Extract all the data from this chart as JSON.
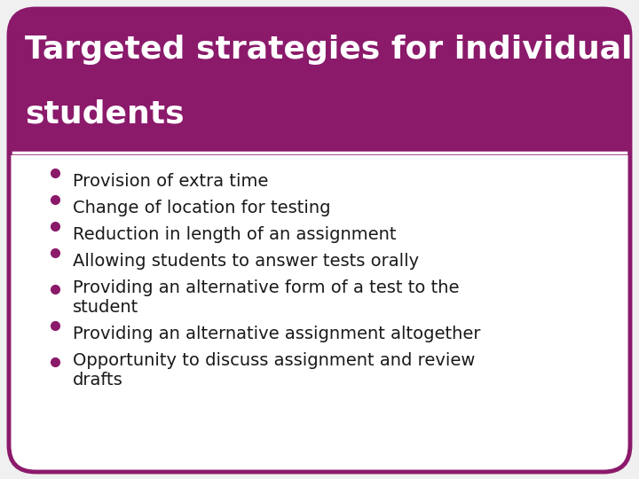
{
  "title_line1": "Targeted strategies for individual",
  "title_line2": "students",
  "title_bg_color": "#8B1A6B",
  "title_text_color": "#FFFFFF",
  "border_color": "#8B1A6B",
  "background_color": "#F0F0F0",
  "card_bg_color": "#FFFFFF",
  "bullet_color": "#8B1A6B",
  "text_color": "#1A1A1A",
  "bullet_points": [
    [
      "Provision of extra time"
    ],
    [
      "Change of location for testing"
    ],
    [
      "Reduction in length of an assignment"
    ],
    [
      "Allowing students to answer tests orally"
    ],
    [
      "Providing an alternative form of a test to the",
      "student"
    ],
    [
      "Providing an alternative assignment altogether"
    ],
    [
      "Opportunity to discuss assignment and review",
      "drafts"
    ]
  ],
  "figsize": [
    7.2,
    5.4
  ],
  "dpi": 100
}
